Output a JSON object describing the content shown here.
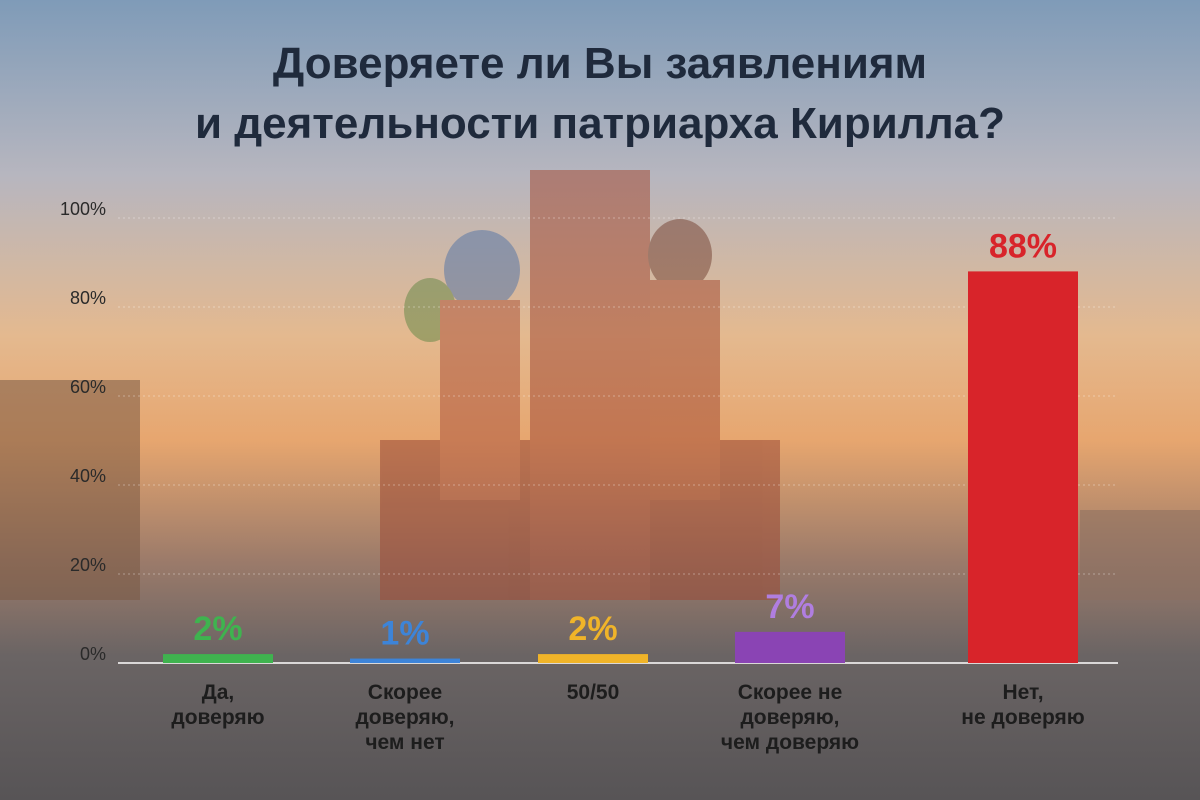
{
  "chart_data": {
    "type": "bar",
    "title": [
      "Доверяете ли Вы заявлениям",
      "и деятельности патриарха Кирилла?"
    ],
    "categories": [
      "Да,\nдоверяю",
      "Скорее\nдоверяю,\nчем нет",
      "50/50",
      "Скорее не\nдоверяю,\nчем доверяю",
      "Нет,\nне доверяю"
    ],
    "values": [
      2,
      1,
      2,
      7,
      88
    ],
    "value_labels": [
      "2%",
      "1%",
      "2%",
      "7%",
      "88%"
    ],
    "colors": [
      "#3fb34f",
      "#3d84d8",
      "#f0b429",
      "#8a44b4",
      "#d8242a"
    ],
    "label_colors": [
      "#3fb34f",
      "#3d84d8",
      "#f0b429",
      "#b07ee0",
      "#d8242a"
    ],
    "ylim": [
      0,
      100
    ],
    "yticks": [
      {
        "value": 0,
        "label": "0%"
      },
      {
        "value": 20,
        "label": "20%"
      },
      {
        "value": 40,
        "label": "40%"
      },
      {
        "value": 60,
        "label": "60%"
      },
      {
        "value": 80,
        "label": "80%"
      },
      {
        "value": 100,
        "label": "100%"
      }
    ],
    "grid": true
  }
}
